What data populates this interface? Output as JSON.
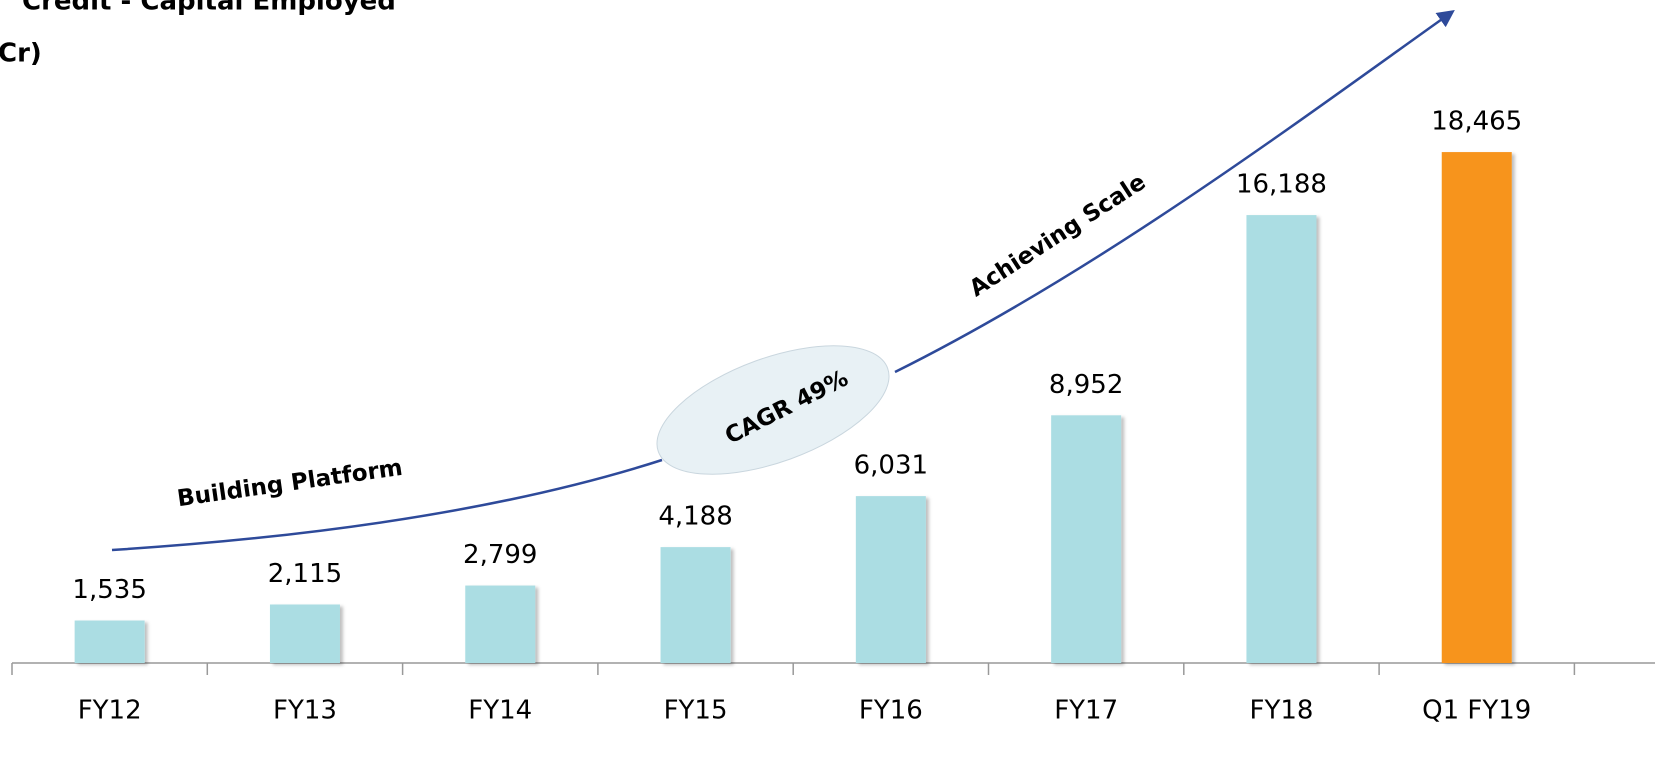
{
  "chart_data": {
    "type": "bar",
    "title": "Credit - Capital Employed",
    "subtitle": "Cr)",
    "categories": [
      "FY12",
      "FY13",
      "FY14",
      "FY15",
      "FY16",
      "FY17",
      "FY18",
      "Q1 FY19"
    ],
    "values": [
      1535,
      2115,
      2799,
      4188,
      6031,
      8952,
      16188,
      18465
    ],
    "value_labels": [
      "1,535",
      "2,115",
      "2,799",
      "4,188",
      "6,031",
      "8,952",
      "16,188",
      "18,465"
    ],
    "colors": [
      "#abdde3",
      "#abdde3",
      "#abdde3",
      "#abdde3",
      "#abdde3",
      "#abdde3",
      "#abdde3",
      "#f7941d"
    ],
    "ylim": [
      0,
      20000
    ],
    "annotations": [
      "Building Platform",
      "CAGR 49%",
      "Achieving Scale"
    ]
  }
}
